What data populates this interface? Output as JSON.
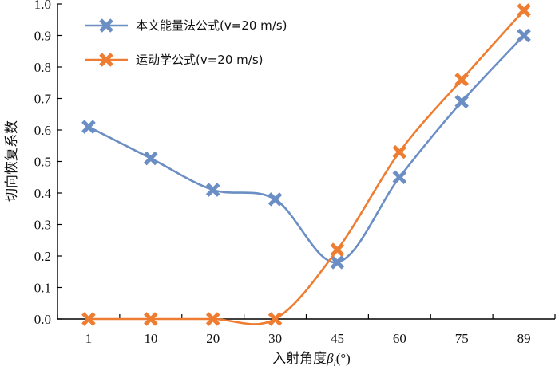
{
  "chart_data": {
    "type": "line",
    "categories": [
      "1",
      "10",
      "20",
      "30",
      "45",
      "60",
      "75",
      "89"
    ],
    "series": [
      {
        "name": "本文能量法公式(v=20 m/s)",
        "color": "#6b8fc4",
        "marker": "x",
        "values": [
          0.61,
          0.51,
          0.41,
          0.38,
          0.18,
          0.45,
          0.69,
          0.9
        ]
      },
      {
        "name": "运动学公式(v=20 m/s)",
        "color": "#ee7d31",
        "marker": "x",
        "values": [
          0.0,
          0.0,
          0.0,
          0.0,
          0.22,
          0.53,
          0.76,
          0.98
        ]
      }
    ],
    "yticks": [
      "0.0",
      "0.1",
      "0.2",
      "0.3",
      "0.4",
      "0.5",
      "0.6",
      "0.7",
      "0.8",
      "0.9",
      "1.0"
    ],
    "ylim": [
      0,
      1.0
    ],
    "xlabel": "入射角度βi(°)",
    "xlabel_parts": {
      "main": "入射角度",
      "symbol": "β",
      "sub": "i",
      "tail": "(°)"
    },
    "ylabel": "切向恢复系数",
    "grid": false,
    "legend_position": "top-left"
  }
}
